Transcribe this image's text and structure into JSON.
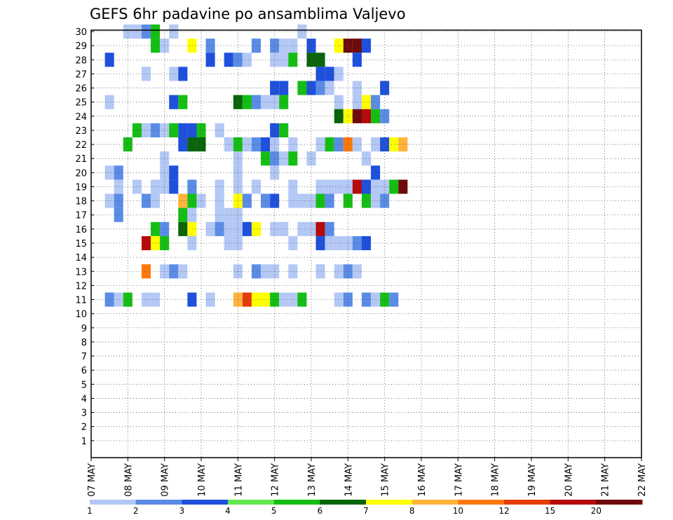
{
  "chart_data": {
    "type": "heatmap",
    "title": "GEFS 6hr padavine po ansamblima Valjevo",
    "xlabel": "",
    "ylabel": "",
    "x_tick_labels": [
      "07 MAY",
      "08 MAY",
      "09 MAY",
      "10 MAY",
      "11 MAY",
      "12 MAY",
      "13 MAY",
      "14 MAY",
      "15 MAY",
      "16 MAY",
      "17 MAY",
      "18 MAY",
      "19 MAY",
      "20 MAY",
      "21 MAY",
      "22 MAY"
    ],
    "x_step": "6h",
    "y_tick_labels": [
      "1",
      "2",
      "3",
      "4",
      "5",
      "6",
      "7",
      "8",
      "9",
      "10",
      "11",
      "12",
      "13",
      "14",
      "15",
      "16",
      "17",
      "18",
      "19",
      "20",
      "21",
      "22",
      "23",
      "24",
      "25",
      "26",
      "27",
      "28",
      "29",
      "30"
    ],
    "grid": true,
    "colorbar": {
      "levels": [
        1,
        2,
        3,
        4,
        5,
        6,
        7,
        8,
        10,
        12,
        15,
        20
      ],
      "level_labels": [
        "1",
        "2",
        "3",
        "4",
        "5",
        "6",
        "7",
        "8",
        "10",
        "12",
        "15",
        "20"
      ],
      "colors": [
        "#b4c8f5",
        "#5a8ce6",
        "#1e50dc",
        "#64e650",
        "#14be14",
        "#0a640a",
        "#ffff00",
        "#ffb43c",
        "#ff780a",
        "#e63c0a",
        "#b40a0a",
        "#6e0a0a"
      ]
    },
    "cells": [
      [
        3,
        30,
        1
      ],
      [
        4,
        30,
        1
      ],
      [
        5,
        30,
        2
      ],
      [
        6,
        30,
        5
      ],
      [
        8,
        30,
        1
      ],
      [
        22,
        30,
        1
      ],
      [
        6,
        29,
        5
      ],
      [
        7,
        29,
        1
      ],
      [
        10,
        29,
        7
      ],
      [
        12,
        29,
        2
      ],
      [
        17,
        29,
        2
      ],
      [
        19,
        29,
        2
      ],
      [
        20,
        29,
        1
      ],
      [
        21,
        29,
        1
      ],
      [
        23,
        29,
        3
      ],
      [
        26,
        29,
        7
      ],
      [
        27,
        29,
        12
      ],
      [
        28,
        29,
        12
      ],
      [
        29,
        29,
        3
      ],
      [
        1,
        28,
        3
      ],
      [
        12,
        28,
        3
      ],
      [
        14,
        28,
        3
      ],
      [
        15,
        28,
        2
      ],
      [
        16,
        28,
        1
      ],
      [
        19,
        28,
        1
      ],
      [
        20,
        28,
        1
      ],
      [
        21,
        28,
        5
      ],
      [
        23,
        28,
        6
      ],
      [
        24,
        28,
        6
      ],
      [
        28,
        28,
        3
      ],
      [
        5,
        27,
        1
      ],
      [
        8,
        27,
        1
      ],
      [
        9,
        27,
        3
      ],
      [
        24,
        27,
        3
      ],
      [
        25,
        27,
        3
      ],
      [
        26,
        27,
        1
      ],
      [
        19,
        26,
        3
      ],
      [
        20,
        26,
        3
      ],
      [
        22,
        26,
        5
      ],
      [
        23,
        26,
        3
      ],
      [
        24,
        26,
        2
      ],
      [
        25,
        26,
        1
      ],
      [
        28,
        26,
        1
      ],
      [
        31,
        26,
        3
      ],
      [
        1,
        25,
        1
      ],
      [
        8,
        25,
        3
      ],
      [
        9,
        25,
        5
      ],
      [
        15,
        25,
        6
      ],
      [
        16,
        25,
        5
      ],
      [
        17,
        25,
        2
      ],
      [
        18,
        25,
        1
      ],
      [
        19,
        25,
        1
      ],
      [
        20,
        25,
        5
      ],
      [
        26,
        25,
        1
      ],
      [
        28,
        25,
        1
      ],
      [
        29,
        25,
        7
      ],
      [
        30,
        25,
        2
      ],
      [
        26,
        24,
        6
      ],
      [
        27,
        24,
        7
      ],
      [
        28,
        24,
        12
      ],
      [
        29,
        24,
        11
      ],
      [
        30,
        24,
        5
      ],
      [
        31,
        24,
        2
      ],
      [
        4,
        23,
        5
      ],
      [
        5,
        23,
        1
      ],
      [
        6,
        23,
        2
      ],
      [
        7,
        23,
        1
      ],
      [
        8,
        23,
        5
      ],
      [
        9,
        23,
        3
      ],
      [
        10,
        23,
        3
      ],
      [
        11,
        23,
        5
      ],
      [
        13,
        23,
        1
      ],
      [
        19,
        23,
        3
      ],
      [
        20,
        23,
        5
      ],
      [
        3,
        22,
        5
      ],
      [
        9,
        22,
        3
      ],
      [
        10,
        22,
        6
      ],
      [
        11,
        22,
        6
      ],
      [
        14,
        22,
        1
      ],
      [
        15,
        22,
        5
      ],
      [
        16,
        22,
        1
      ],
      [
        17,
        22,
        2
      ],
      [
        18,
        22,
        3
      ],
      [
        19,
        22,
        1
      ],
      [
        21,
        22,
        1
      ],
      [
        24,
        22,
        1
      ],
      [
        25,
        22,
        5
      ],
      [
        26,
        22,
        2
      ],
      [
        27,
        22,
        9
      ],
      [
        28,
        22,
        1
      ],
      [
        30,
        22,
        1
      ],
      [
        31,
        22,
        3
      ],
      [
        32,
        22,
        7
      ],
      [
        33,
        22,
        8
      ],
      [
        7,
        21,
        1
      ],
      [
        15,
        21,
        1
      ],
      [
        18,
        21,
        5
      ],
      [
        19,
        21,
        2
      ],
      [
        20,
        21,
        1
      ],
      [
        21,
        21,
        5
      ],
      [
        23,
        21,
        1
      ],
      [
        29,
        21,
        1
      ],
      [
        1,
        20,
        1
      ],
      [
        2,
        20,
        2
      ],
      [
        7,
        20,
        1
      ],
      [
        8,
        20,
        3
      ],
      [
        15,
        20,
        1
      ],
      [
        19,
        20,
        1
      ],
      [
        30,
        20,
        3
      ],
      [
        2,
        19,
        1
      ],
      [
        4,
        19,
        1
      ],
      [
        6,
        19,
        1
      ],
      [
        7,
        19,
        1
      ],
      [
        8,
        19,
        3
      ],
      [
        10,
        19,
        2
      ],
      [
        13,
        19,
        1
      ],
      [
        15,
        19,
        1
      ],
      [
        17,
        19,
        1
      ],
      [
        21,
        19,
        1
      ],
      [
        24,
        19,
        1
      ],
      [
        25,
        19,
        1
      ],
      [
        26,
        19,
        1
      ],
      [
        27,
        19,
        1
      ],
      [
        28,
        19,
        11
      ],
      [
        29,
        19,
        3
      ],
      [
        30,
        19,
        1
      ],
      [
        31,
        19,
        1
      ],
      [
        32,
        19,
        5
      ],
      [
        33,
        19,
        12
      ],
      [
        1,
        18,
        1
      ],
      [
        2,
        18,
        2
      ],
      [
        5,
        18,
        2
      ],
      [
        6,
        18,
        1
      ],
      [
        9,
        18,
        8
      ],
      [
        10,
        18,
        5
      ],
      [
        11,
        18,
        1
      ],
      [
        13,
        18,
        1
      ],
      [
        15,
        18,
        7
      ],
      [
        16,
        18,
        2
      ],
      [
        18,
        18,
        2
      ],
      [
        19,
        18,
        3
      ],
      [
        21,
        18,
        1
      ],
      [
        22,
        18,
        1
      ],
      [
        23,
        18,
        1
      ],
      [
        24,
        18,
        5
      ],
      [
        25,
        18,
        2
      ],
      [
        27,
        18,
        5
      ],
      [
        29,
        18,
        5
      ],
      [
        30,
        18,
        1
      ],
      [
        31,
        18,
        2
      ],
      [
        2,
        17,
        2
      ],
      [
        9,
        17,
        5
      ],
      [
        10,
        17,
        1
      ],
      [
        13,
        17,
        1
      ],
      [
        14,
        17,
        1
      ],
      [
        15,
        17,
        1
      ],
      [
        6,
        16,
        5
      ],
      [
        7,
        16,
        2
      ],
      [
        9,
        16,
        6
      ],
      [
        10,
        16,
        7
      ],
      [
        12,
        16,
        1
      ],
      [
        13,
        16,
        2
      ],
      [
        14,
        16,
        1
      ],
      [
        15,
        16,
        1
      ],
      [
        16,
        16,
        3
      ],
      [
        17,
        16,
        7
      ],
      [
        19,
        16,
        1
      ],
      [
        20,
        16,
        1
      ],
      [
        22,
        16,
        1
      ],
      [
        23,
        16,
        1
      ],
      [
        24,
        16,
        11
      ],
      [
        25,
        16,
        2
      ],
      [
        5,
        15,
        11
      ],
      [
        6,
        15,
        7
      ],
      [
        7,
        15,
        5
      ],
      [
        10,
        15,
        1
      ],
      [
        14,
        15,
        1
      ],
      [
        15,
        15,
        1
      ],
      [
        21,
        15,
        1
      ],
      [
        24,
        15,
        3
      ],
      [
        25,
        15,
        1
      ],
      [
        26,
        15,
        1
      ],
      [
        27,
        15,
        1
      ],
      [
        28,
        15,
        2
      ],
      [
        29,
        15,
        3
      ],
      [
        5,
        13,
        9
      ],
      [
        7,
        13,
        1
      ],
      [
        8,
        13,
        2
      ],
      [
        9,
        13,
        1
      ],
      [
        15,
        13,
        1
      ],
      [
        17,
        13,
        2
      ],
      [
        18,
        13,
        1
      ],
      [
        19,
        13,
        1
      ],
      [
        21,
        13,
        1
      ],
      [
        24,
        13,
        1
      ],
      [
        26,
        13,
        1
      ],
      [
        27,
        13,
        2
      ],
      [
        28,
        13,
        1
      ],
      [
        1,
        11,
        2
      ],
      [
        2,
        11,
        1
      ],
      [
        3,
        11,
        5
      ],
      [
        5,
        11,
        1
      ],
      [
        6,
        11,
        1
      ],
      [
        10,
        11,
        3
      ],
      [
        12,
        11,
        1
      ],
      [
        15,
        11,
        8
      ],
      [
        16,
        11,
        10
      ],
      [
        17,
        11,
        7
      ],
      [
        18,
        11,
        7
      ],
      [
        19,
        11,
        5
      ],
      [
        20,
        11,
        1
      ],
      [
        21,
        11,
        1
      ],
      [
        22,
        11,
        5
      ],
      [
        26,
        11,
        1
      ],
      [
        27,
        11,
        2
      ],
      [
        29,
        11,
        2
      ],
      [
        30,
        11,
        1
      ],
      [
        31,
        11,
        5
      ],
      [
        32,
        11,
        2
      ]
    ]
  }
}
